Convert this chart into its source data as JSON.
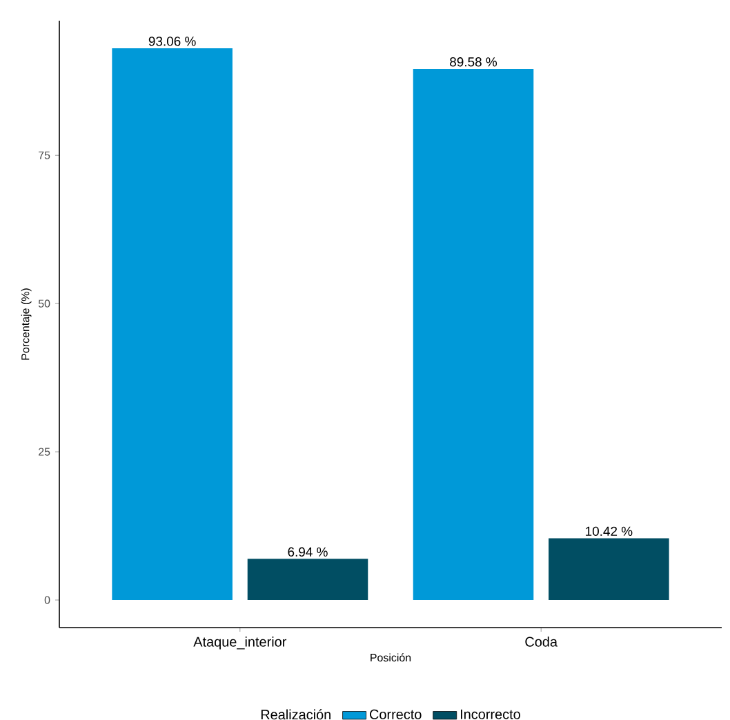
{
  "chart_data": {
    "type": "bar",
    "xlabel": "Posición",
    "ylabel": "Porcentaje (%)",
    "legend_title": "Realización",
    "categories": [
      "Ataque_interior",
      "Coda"
    ],
    "series": [
      {
        "name": "Correcto",
        "color": "#0099d8",
        "values": [
          93.06,
          89.58
        ],
        "value_labels": [
          "93.06 %",
          "89.58 %"
        ]
      },
      {
        "name": "Incorrecto",
        "color": "#014e63",
        "values": [
          6.94,
          10.42
        ],
        "value_labels": [
          "6.94 %",
          "10.42 %"
        ]
      }
    ],
    "ylim": [
      -4.65,
      97.71
    ],
    "yticks": [
      0,
      25,
      50,
      75
    ],
    "legend": "bottom"
  }
}
